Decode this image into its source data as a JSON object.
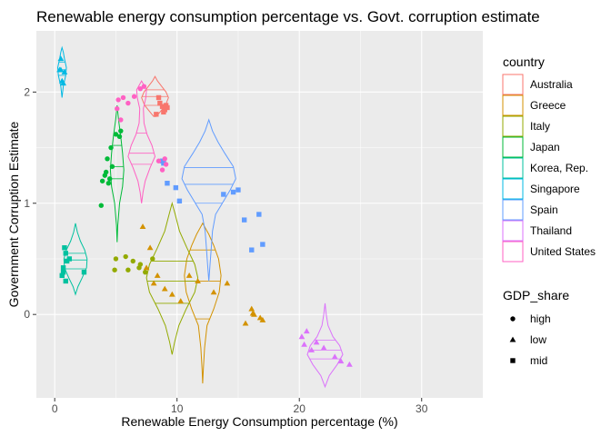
{
  "chart_data": {
    "type": "scatter",
    "title": "Renewable energy consumption percentage vs. Govt. corruption estimate",
    "xlabel": "Renewable Energy Consumption percentage (%)",
    "ylabel": "Government Corruption Estimate",
    "xlim": [
      -1.5,
      35
    ],
    "ylim": [
      -0.75,
      2.55
    ],
    "x_ticks": [
      0,
      10,
      20,
      30
    ],
    "y_ticks": [
      0,
      1,
      2
    ],
    "x_tick_labels": [
      "0",
      "10",
      "20",
      "30"
    ],
    "y_tick_labels": [
      "0",
      "1",
      "2"
    ],
    "grid": true,
    "panel_background": "#ebebeb",
    "legend_position": "right",
    "color_legend": {
      "title": "country",
      "entries": [
        "Australia",
        "Greece",
        "Italy",
        "Japan",
        "Korea, Rep.",
        "Singapore",
        "Spain",
        "Thailand",
        "United States"
      ]
    },
    "shape_legend": {
      "title": "GDP_share",
      "entries": [
        "high",
        "low",
        "mid"
      ],
      "shapes": [
        "circle",
        "triangle",
        "square"
      ]
    },
    "series": [
      {
        "name": "Australia",
        "color": "#f8766d",
        "shape": "square",
        "points": [
          [
            8.3,
            1.8
          ],
          [
            8.6,
            1.9
          ],
          [
            8.8,
            1.87
          ],
          [
            9.0,
            1.84
          ],
          [
            9.1,
            1.88
          ],
          [
            8.9,
            1.82
          ],
          [
            8.5,
            1.95
          ],
          [
            9.2,
            1.86
          ]
        ],
        "violin": {
          "x_center": 8.2,
          "ymin": 1.78,
          "ymax": 2.14,
          "half_width_max": 1.1,
          "quantiles": [
            1.88,
            1.96,
            2.02
          ],
          "profile": [
            [
              1.78,
              0.1
            ],
            [
              1.82,
              0.4
            ],
            [
              1.88,
              0.85
            ],
            [
              1.95,
              1.1
            ],
            [
              2.0,
              0.9
            ],
            [
              2.05,
              0.55
            ],
            [
              2.1,
              0.2
            ],
            [
              2.14,
              0.0
            ]
          ]
        }
      },
      {
        "name": "Greece",
        "color": "#d39200",
        "shape": "triangle",
        "points": [
          [
            7.2,
            0.79
          ],
          [
            7.8,
            0.6
          ],
          [
            8.4,
            0.35
          ],
          [
            9.0,
            0.23
          ],
          [
            9.6,
            0.18
          ],
          [
            10.3,
            0.12
          ],
          [
            11.0,
            0.35
          ],
          [
            11.7,
            0.3
          ],
          [
            13.0,
            0.2
          ],
          [
            14.1,
            0.28
          ],
          [
            16.1,
            0.05
          ],
          [
            16.3,
            0.0
          ],
          [
            16.8,
            -0.03
          ],
          [
            15.6,
            -0.08
          ],
          [
            16.2,
            0.01
          ],
          [
            17.0,
            -0.05
          ],
          [
            7.5,
            0.42
          ],
          [
            8.1,
            0.28
          ]
        ],
        "violin": {
          "x_center": 12.1,
          "ymin": -0.62,
          "ymax": 0.82,
          "half_width_max": 1.5,
          "quantiles": [
            -0.04,
            0.3,
            0.58
          ],
          "profile": [
            [
              -0.62,
              0.0
            ],
            [
              -0.5,
              0.05
            ],
            [
              -0.3,
              0.15
            ],
            [
              -0.1,
              0.35
            ],
            [
              0.05,
              0.9
            ],
            [
              0.2,
              1.35
            ],
            [
              0.35,
              1.5
            ],
            [
              0.5,
              1.3
            ],
            [
              0.62,
              0.9
            ],
            [
              0.72,
              0.5
            ],
            [
              0.82,
              0.0
            ]
          ]
        }
      },
      {
        "name": "Italy",
        "color": "#93aa00",
        "shape": "circle",
        "points": [
          [
            5.0,
            0.5
          ],
          [
            5.8,
            0.52
          ],
          [
            6.4,
            0.48
          ],
          [
            6.9,
            0.42
          ],
          [
            7.4,
            0.38
          ],
          [
            4.9,
            0.4
          ],
          [
            6.0,
            0.4
          ],
          [
            7.0,
            0.45
          ],
          [
            8.0,
            0.5
          ]
        ],
        "violin": {
          "x_center": 9.6,
          "ymin": -0.36,
          "ymax": 1.0,
          "half_width_max": 2.1,
          "quantiles": [
            0.1,
            0.3,
            0.48
          ],
          "profile": [
            [
              -0.36,
              0.0
            ],
            [
              -0.25,
              0.2
            ],
            [
              -0.1,
              0.55
            ],
            [
              0.05,
              1.15
            ],
            [
              0.2,
              1.85
            ],
            [
              0.33,
              2.1
            ],
            [
              0.45,
              1.85
            ],
            [
              0.6,
              1.2
            ],
            [
              0.75,
              0.6
            ],
            [
              0.9,
              0.25
            ],
            [
              1.0,
              0.0
            ]
          ]
        }
      },
      {
        "name": "Japan",
        "color": "#00ba38",
        "shape": "circle",
        "points": [
          [
            3.9,
            1.2
          ],
          [
            4.1,
            1.25
          ],
          [
            4.3,
            1.4
          ],
          [
            4.5,
            1.22
          ],
          [
            4.7,
            1.33
          ],
          [
            5.0,
            1.62
          ],
          [
            5.4,
            1.65
          ],
          [
            5.3,
            1.6
          ],
          [
            4.2,
            1.28
          ],
          [
            3.8,
            0.98
          ],
          [
            4.6,
            1.5
          ],
          [
            4.4,
            1.18
          ]
        ],
        "violin": {
          "x_center": 5.1,
          "ymin": 0.65,
          "ymax": 1.88,
          "half_width_max": 0.55,
          "quantiles": [
            1.22,
            1.33,
            1.52
          ],
          "profile": [
            [
              0.65,
              0.0
            ],
            [
              0.8,
              0.05
            ],
            [
              1.0,
              0.2
            ],
            [
              1.15,
              0.45
            ],
            [
              1.3,
              0.55
            ],
            [
              1.45,
              0.45
            ],
            [
              1.6,
              0.3
            ],
            [
              1.75,
              0.12
            ],
            [
              1.88,
              0.0
            ]
          ]
        }
      },
      {
        "name": "Korea, Rep.",
        "color": "#00c19f",
        "shape": "square",
        "points": [
          [
            0.6,
            0.35
          ],
          [
            0.7,
            0.42
          ],
          [
            0.9,
            0.55
          ],
          [
            0.8,
            0.6
          ],
          [
            1.0,
            0.48
          ],
          [
            1.2,
            0.5
          ],
          [
            2.4,
            0.38
          ],
          [
            0.7,
            0.38
          ],
          [
            0.9,
            0.3
          ]
        ],
        "violin": {
          "x_center": 1.7,
          "ymin": 0.18,
          "ymax": 0.82,
          "half_width_max": 0.95,
          "quantiles": [
            0.41,
            0.49,
            0.55
          ],
          "profile": [
            [
              0.18,
              0.0
            ],
            [
              0.25,
              0.2
            ],
            [
              0.33,
              0.55
            ],
            [
              0.42,
              0.9
            ],
            [
              0.5,
              0.95
            ],
            [
              0.58,
              0.75
            ],
            [
              0.66,
              0.4
            ],
            [
              0.74,
              0.15
            ],
            [
              0.82,
              0.0
            ]
          ]
        }
      },
      {
        "name": "Singapore",
        "color": "#00b9e3",
        "shape": "triangle",
        "points": [
          [
            0.4,
            2.2
          ],
          [
            0.5,
            2.3
          ],
          [
            0.6,
            2.1
          ],
          [
            0.7,
            2.08
          ],
          [
            0.8,
            2.18
          ],
          [
            0.5,
            2.2
          ]
        ],
        "violin": {
          "x_center": 0.6,
          "ymin": 1.95,
          "ymax": 2.4,
          "half_width_max": 0.35,
          "quantiles": [
            2.15,
            2.2,
            2.27
          ],
          "profile": [
            [
              1.95,
              0.0
            ],
            [
              2.05,
              0.1
            ],
            [
              2.15,
              0.3
            ],
            [
              2.22,
              0.35
            ],
            [
              2.3,
              0.2
            ],
            [
              2.36,
              0.1
            ],
            [
              2.4,
              0.0
            ]
          ]
        }
      },
      {
        "name": "Spain",
        "color": "#619cff",
        "shape": "square",
        "points": [
          [
            8.8,
            1.38
          ],
          [
            8.9,
            1.36
          ],
          [
            9.2,
            1.18
          ],
          [
            9.9,
            1.14
          ],
          [
            10.2,
            1.02
          ],
          [
            14.6,
            1.1
          ],
          [
            15.0,
            1.12
          ],
          [
            15.5,
            0.85
          ],
          [
            16.7,
            0.9
          ],
          [
            17.0,
            0.63
          ],
          [
            16.1,
            0.58
          ],
          [
            13.8,
            1.08
          ]
        ],
        "violin": {
          "x_center": 12.6,
          "ymin": 0.3,
          "ymax": 1.75,
          "half_width_max": 2.2,
          "quantiles": [
            1.0,
            1.17,
            1.32
          ],
          "profile": [
            [
              0.3,
              0.0
            ],
            [
              0.45,
              0.1
            ],
            [
              0.6,
              0.2
            ],
            [
              0.75,
              0.3
            ],
            [
              0.9,
              0.55
            ],
            [
              1.0,
              1.1
            ],
            [
              1.12,
              1.75
            ],
            [
              1.22,
              2.2
            ],
            [
              1.33,
              2.0
            ],
            [
              1.45,
              1.3
            ],
            [
              1.55,
              0.75
            ],
            [
              1.65,
              0.3
            ],
            [
              1.75,
              0.0
            ]
          ]
        }
      },
      {
        "name": "Thailand",
        "color": "#db72fb",
        "shape": "triangle",
        "points": [
          [
            20.2,
            -0.2
          ],
          [
            20.6,
            -0.15
          ],
          [
            21.4,
            -0.25
          ],
          [
            22.0,
            -0.3
          ],
          [
            22.9,
            -0.38
          ],
          [
            23.4,
            -0.42
          ],
          [
            24.1,
            -0.45
          ],
          [
            20.4,
            -0.27
          ],
          [
            21.0,
            -0.32
          ]
        ],
        "violin": {
          "x_center": 22.1,
          "ymin": -0.65,
          "ymax": 0.1,
          "half_width_max": 1.45,
          "quantiles": [
            -0.4,
            -0.32,
            -0.23
          ],
          "profile": [
            [
              -0.65,
              0.0
            ],
            [
              -0.55,
              0.35
            ],
            [
              -0.45,
              1.0
            ],
            [
              -0.36,
              1.45
            ],
            [
              -0.28,
              1.2
            ],
            [
              -0.2,
              0.65
            ],
            [
              -0.1,
              0.25
            ],
            [
              0.0,
              0.1
            ],
            [
              0.1,
              0.0
            ]
          ]
        }
      },
      {
        "name": "United States",
        "color": "#ff61c3",
        "shape": "circle",
        "points": [
          [
            5.1,
            1.85
          ],
          [
            5.2,
            1.93
          ],
          [
            5.6,
            1.95
          ],
          [
            6.5,
            1.96
          ],
          [
            7.0,
            2.03
          ],
          [
            7.3,
            2.05
          ],
          [
            8.5,
            1.38
          ],
          [
            9.1,
            1.35
          ],
          [
            9.0,
            1.4
          ],
          [
            5.4,
            1.75
          ],
          [
            6.0,
            1.9
          ],
          [
            8.8,
            1.3
          ]
        ],
        "violin": {
          "x_center": 7.1,
          "ymin": 1.0,
          "ymax": 2.1,
          "half_width_max": 1.1,
          "quantiles": [
            1.35,
            1.45,
            1.63
          ],
          "profile": [
            [
              1.0,
              0.0
            ],
            [
              1.1,
              0.12
            ],
            [
              1.2,
              0.3
            ],
            [
              1.32,
              0.7
            ],
            [
              1.42,
              1.1
            ],
            [
              1.52,
              0.85
            ],
            [
              1.62,
              0.45
            ],
            [
              1.72,
              0.2
            ],
            [
              1.85,
              0.15
            ],
            [
              1.95,
              0.35
            ],
            [
              2.02,
              0.4
            ],
            [
              2.1,
              0.0
            ]
          ]
        }
      }
    ]
  }
}
